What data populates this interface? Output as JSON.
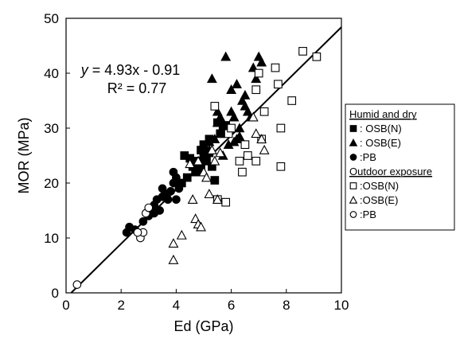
{
  "chart_data": {
    "type": "scatter",
    "xlabel": "Ed (GPa)",
    "ylabel": "MOR (MPa)",
    "xlim": [
      0,
      10
    ],
    "ylim": [
      0,
      50
    ],
    "x_ticks": [
      "0",
      "2",
      "4",
      "6",
      "8",
      "10"
    ],
    "y_ticks": [
      "0",
      "10",
      "20",
      "30",
      "40",
      "50"
    ],
    "grid": false,
    "legend_placement": "right-outside",
    "legend_groups": [
      {
        "title": "Humid and dry",
        "entries": [
          {
            "label": ": OSB(N)",
            "marker": "square-filled"
          },
          {
            "label": ": OSB(E)",
            "marker": "triangle-filled"
          },
          {
            "label": ":PB",
            "marker": "circle-filled"
          }
        ]
      },
      {
        "title": "Outdoor exposure",
        "entries": [
          {
            "label": ":OSB(N)",
            "marker": "square-open"
          },
          {
            "label": ":OSB(E)",
            "marker": "triangle-open"
          },
          {
            "label": ":PB",
            "marker": "circle-open"
          }
        ]
      }
    ],
    "regression": {
      "slope": 4.93,
      "intercept": -0.91,
      "equation_prefix": "y",
      "equation_rest": " = 4.93x - 0.91",
      "r2_text": "R² = 0.77"
    },
    "series": [
      {
        "label": "Humid and dry : OSB(N)",
        "marker": "square-filled",
        "points": [
          [
            4.3,
            25
          ],
          [
            4.5,
            24.5
          ],
          [
            4.6,
            23
          ],
          [
            4.7,
            22
          ],
          [
            4.8,
            24
          ],
          [
            4.9,
            26
          ],
          [
            5.0,
            25
          ],
          [
            5.1,
            24
          ],
          [
            5.2,
            25.5
          ],
          [
            5.3,
            23
          ],
          [
            5.4,
            20.5
          ],
          [
            5.5,
            31
          ],
          [
            5.6,
            29
          ],
          [
            5.7,
            30
          ],
          [
            5.8,
            30.5
          ],
          [
            4.4,
            21
          ],
          [
            4.9,
            22.5
          ],
          [
            5.2,
            28
          ],
          [
            4.2,
            20
          ],
          [
            5.0,
            27
          ]
        ]
      },
      {
        "label": "Humid and dry : OSB(E)",
        "marker": "triangle-filled",
        "points": [
          [
            5.0,
            26
          ],
          [
            5.2,
            27.5
          ],
          [
            5.4,
            28
          ],
          [
            5.5,
            31
          ],
          [
            5.6,
            29
          ],
          [
            5.7,
            25
          ],
          [
            5.8,
            43
          ],
          [
            5.9,
            27
          ],
          [
            6.0,
            33
          ],
          [
            6.1,
            32
          ],
          [
            6.2,
            28
          ],
          [
            6.3,
            30
          ],
          [
            6.4,
            35
          ],
          [
            6.5,
            34
          ],
          [
            6.6,
            33
          ],
          [
            6.7,
            32
          ],
          [
            6.8,
            41
          ],
          [
            6.9,
            39
          ],
          [
            7.0,
            43
          ],
          [
            7.1,
            42
          ],
          [
            5.3,
            39
          ],
          [
            6.0,
            37
          ],
          [
            6.2,
            38
          ],
          [
            6.5,
            36
          ],
          [
            5.6,
            32
          ],
          [
            5.9,
            30
          ],
          [
            6.1,
            27.5
          ],
          [
            6.3,
            28.5
          ],
          [
            5.2,
            26
          ],
          [
            5.5,
            33
          ]
        ]
      },
      {
        "label": "Humid and dry :PB",
        "marker": "circle-filled",
        "points": [
          [
            2.2,
            11
          ],
          [
            2.3,
            12
          ],
          [
            2.5,
            11.5
          ],
          [
            2.8,
            13
          ],
          [
            3.0,
            14
          ],
          [
            3.1,
            15
          ],
          [
            3.2,
            16
          ],
          [
            3.3,
            17
          ],
          [
            3.4,
            15
          ],
          [
            3.5,
            17.5
          ],
          [
            3.6,
            18
          ],
          [
            3.7,
            17
          ],
          [
            3.8,
            18.5
          ],
          [
            3.9,
            20
          ],
          [
            4.0,
            21
          ],
          [
            4.1,
            19
          ],
          [
            3.5,
            19
          ],
          [
            3.9,
            22
          ],
          [
            3.2,
            14.5
          ],
          [
            4.0,
            17
          ]
        ]
      },
      {
        "label": "Outdoor exposure :OSB(N)",
        "marker": "square-open",
        "points": [
          [
            5.4,
            34
          ],
          [
            5.5,
            17
          ],
          [
            5.8,
            16.5
          ],
          [
            5.9,
            29
          ],
          [
            6.0,
            30
          ],
          [
            6.3,
            24
          ],
          [
            6.5,
            27
          ],
          [
            6.6,
            25
          ],
          [
            6.9,
            37
          ],
          [
            6.9,
            24
          ],
          [
            7.0,
            40
          ],
          [
            7.1,
            28
          ],
          [
            7.2,
            33
          ],
          [
            7.6,
            41
          ],
          [
            7.7,
            38
          ],
          [
            7.8,
            30
          ],
          [
            7.8,
            23
          ],
          [
            8.2,
            35
          ],
          [
            8.6,
            44
          ],
          [
            9.1,
            43
          ],
          [
            6.4,
            22
          ]
        ]
      },
      {
        "label": "Outdoor exposure :OSB(E)",
        "marker": "triangle-open",
        "points": [
          [
            3.9,
            9
          ],
          [
            3.9,
            6
          ],
          [
            4.2,
            10.5
          ],
          [
            4.7,
            13.5
          ],
          [
            4.8,
            12.5
          ],
          [
            4.9,
            12
          ],
          [
            5.0,
            22
          ],
          [
            5.1,
            21
          ],
          [
            5.2,
            18
          ],
          [
            5.5,
            17
          ],
          [
            4.5,
            23.5
          ],
          [
            4.8,
            24
          ],
          [
            5.3,
            26
          ],
          [
            5.6,
            25.5
          ],
          [
            6.8,
            32
          ],
          [
            6.9,
            29
          ],
          [
            7.1,
            28
          ],
          [
            7.2,
            26
          ],
          [
            4.6,
            17
          ],
          [
            5.4,
            24
          ]
        ]
      },
      {
        "label": "Outdoor exposure :PB",
        "marker": "circle-open",
        "points": [
          [
            0.4,
            1.5
          ],
          [
            2.7,
            10
          ],
          [
            2.8,
            11
          ],
          [
            2.9,
            14.5
          ],
          [
            3.0,
            15.5
          ],
          [
            2.6,
            11
          ]
        ]
      }
    ]
  }
}
